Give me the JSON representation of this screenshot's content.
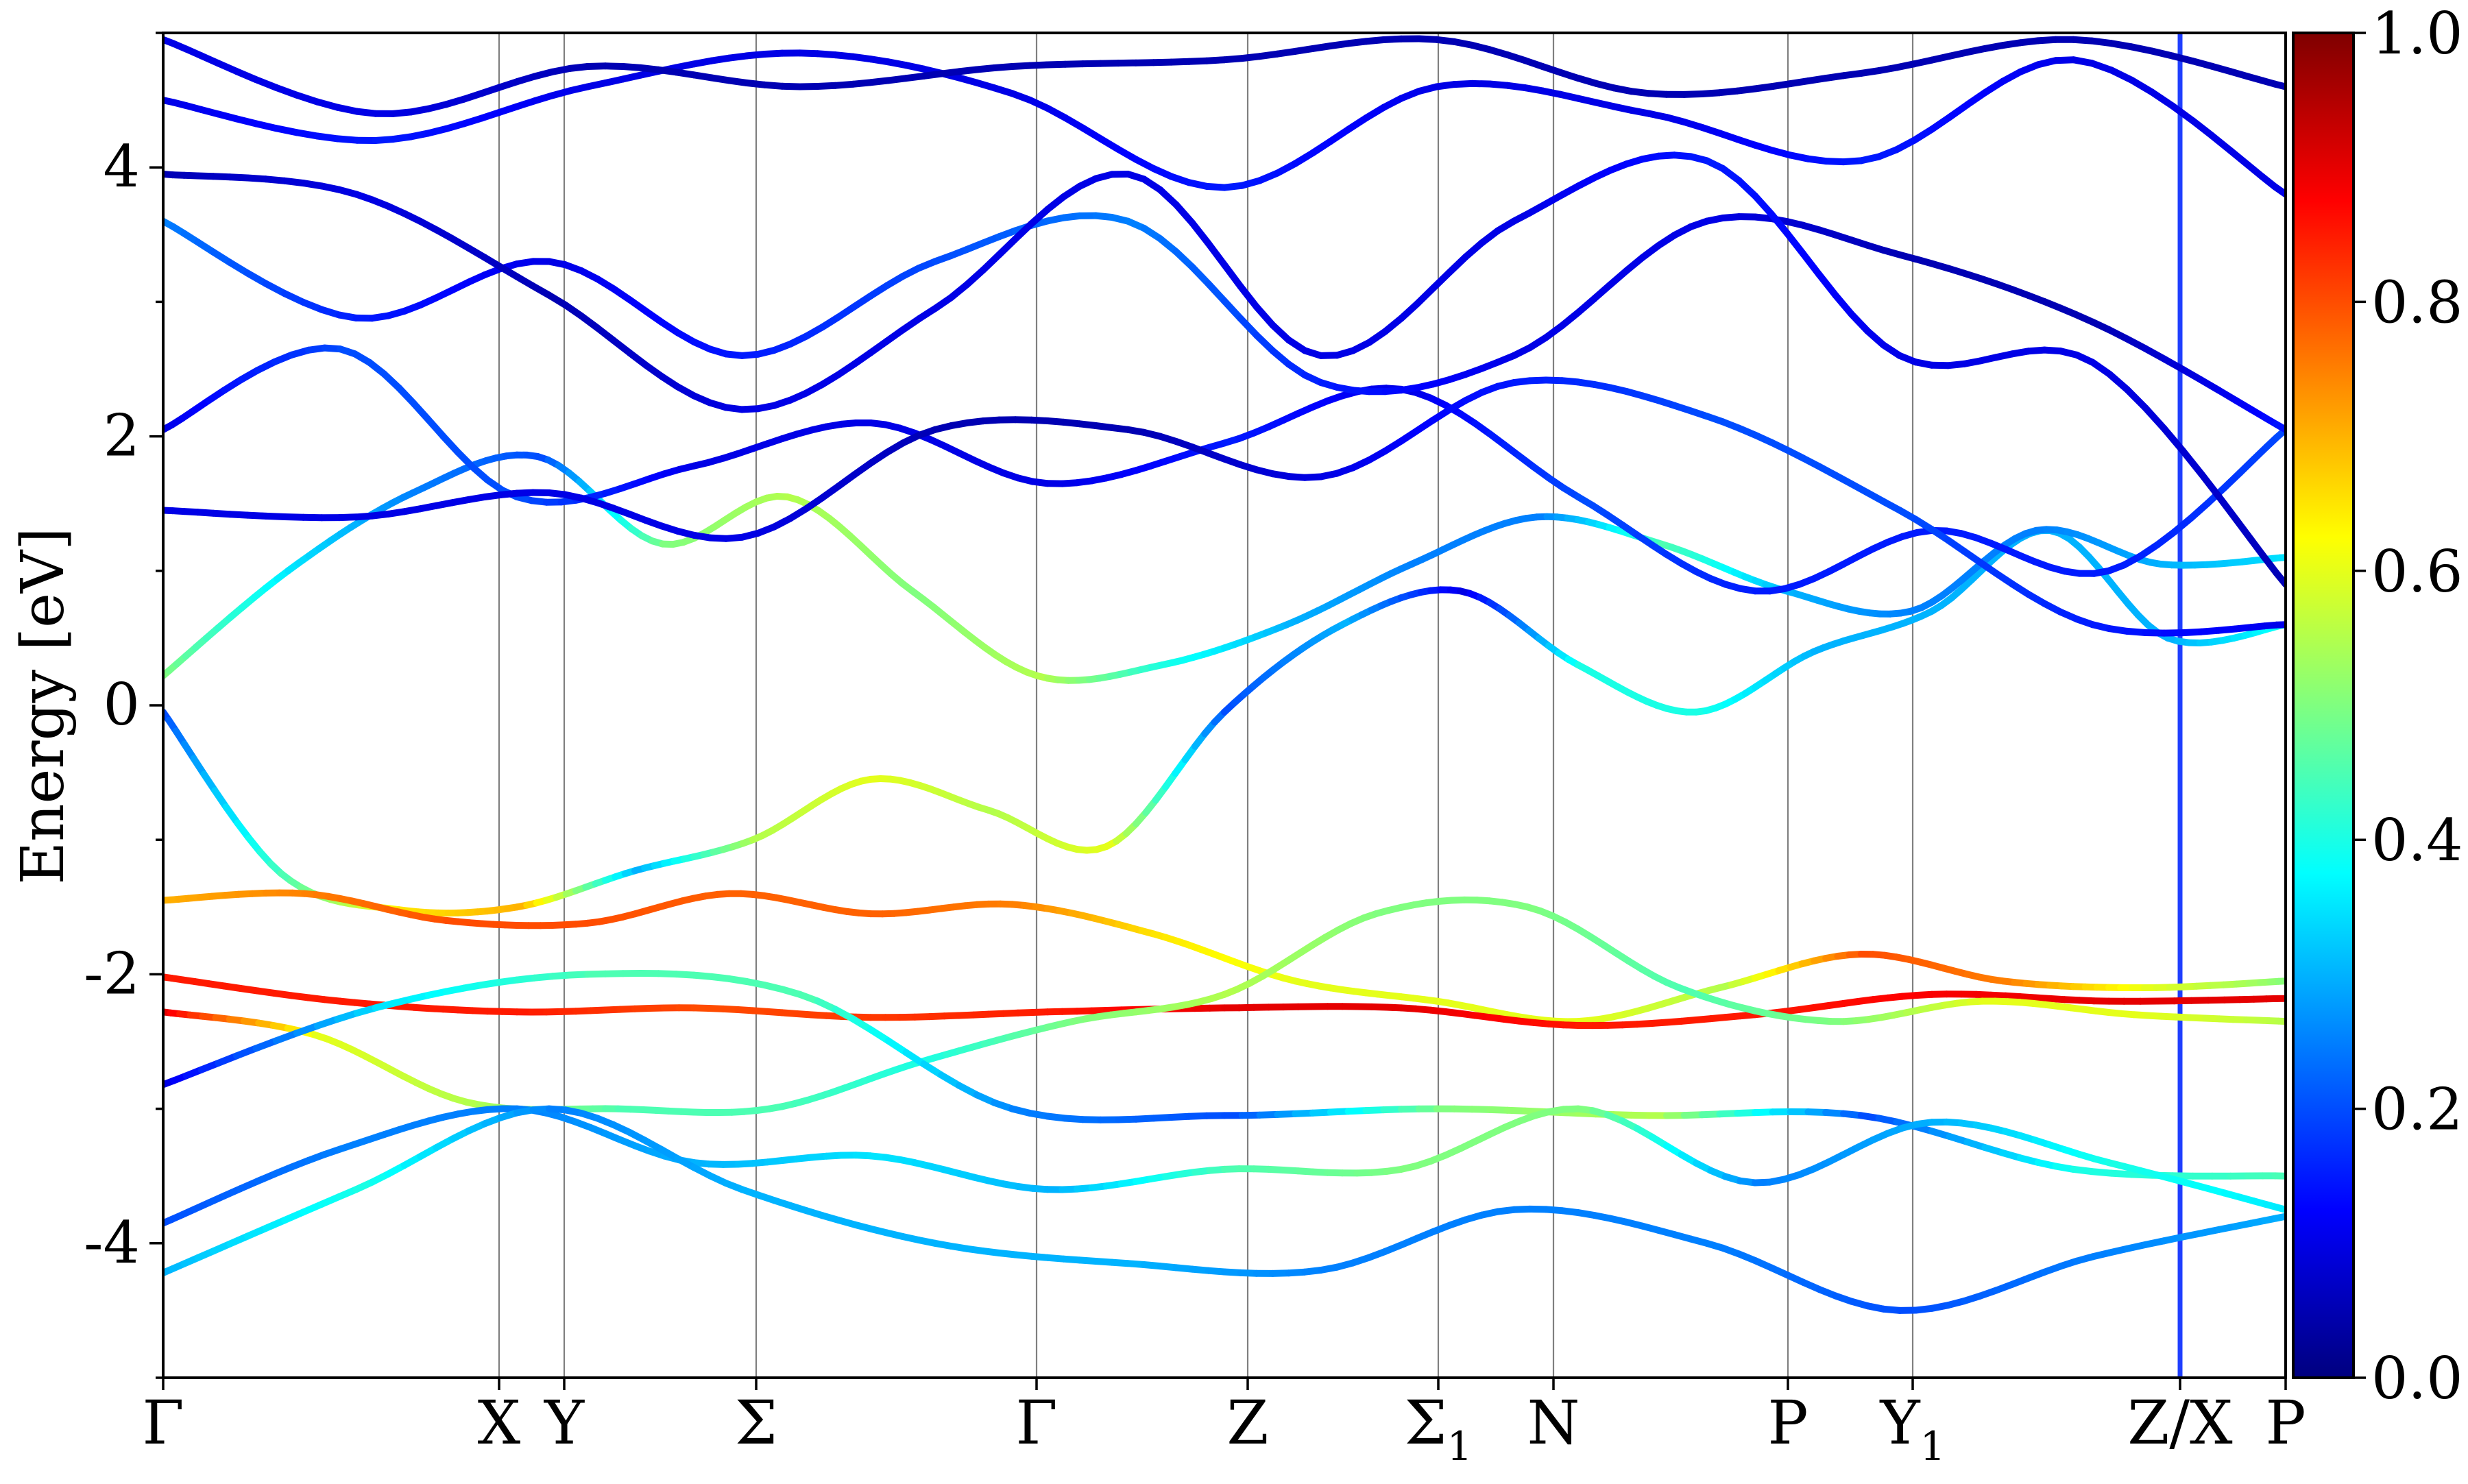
{
  "chart_data": {
    "type": "line",
    "title": "",
    "xlabel": "",
    "ylabel": "Energy [eV]",
    "ylim": [
      -5,
      5
    ],
    "y_ticks": [
      -4,
      -2,
      0,
      2,
      4
    ],
    "y_tick_labels": [
      "-4",
      "-2",
      "0",
      "2",
      "4"
    ],
    "k_labels": [
      {
        "text": "Γ",
        "sub": ""
      },
      {
        "text": "X",
        "sub": ""
      },
      {
        "text": "Y",
        "sub": ""
      },
      {
        "text": "Σ",
        "sub": ""
      },
      {
        "text": "Γ",
        "sub": ""
      },
      {
        "text": "Z",
        "sub": ""
      },
      {
        "text": "Σ",
        "sub": "1"
      },
      {
        "text": "N",
        "sub": ""
      },
      {
        "text": "P",
        "sub": ""
      },
      {
        "text": "Y",
        "sub": "1"
      },
      {
        "text": "Z/X",
        "sub": ""
      },
      {
        "text": "P",
        "sub": ""
      }
    ],
    "k_positions": [
      0,
      1.0,
      0.2,
      0.57,
      0.84,
      0.63,
      0.57,
      0.34,
      0.71,
      0.37,
      0.8,
      0.31
    ],
    "grid": "vertical lines at high-symmetry points",
    "colorbar": {
      "min": 0.0,
      "max": 1.0,
      "ticks": [
        "0.0",
        "0.2",
        "0.4",
        "0.6",
        "0.8",
        "1.0"
      ],
      "colormap": "jet"
    },
    "band_path": [
      {
        "energy": [
          -0.05,
          -1.25,
          -1.52,
          -1.5,
          -1.23,
          -1.0,
          -0.55,
          -0.78,
          -1.05,
          -0.05,
          0.6,
          0.85,
          0.3,
          -0.05,
          0.4,
          0.7,
          1.3,
          0.5,
          0.6
        ],
        "weight": [
          0.2,
          0.45,
          0.65,
          0.7,
          0.3,
          0.55,
          0.6,
          0.55,
          0.6,
          0.2,
          0.3,
          0.1,
          0.4,
          0.4,
          0.3,
          0.3,
          0.3,
          0.3,
          0.4
        ]
      },
      {
        "energy": [
          0.22,
          1.0,
          1.58,
          1.85,
          1.2,
          1.55,
          0.85,
          0.22,
          0.3,
          0.6,
          1.05,
          1.4,
          1.2,
          0.85,
          0.7,
          1.3,
          1.05,
          1.1
        ],
        "weight": [
          0.5,
          0.35,
          0.25,
          0.2,
          0.5,
          0.55,
          0.5,
          0.55,
          0.4,
          0.3,
          0.25,
          0.25,
          0.45,
          0.3,
          0.25,
          0.25,
          0.3,
          0.35
        ]
      },
      {
        "energy": [
          -1.45,
          -1.4,
          -1.6,
          -1.62,
          -1.4,
          -1.55,
          -1.48,
          -1.7,
          -2.05,
          -2.2,
          -2.35,
          -2.1,
          -1.85,
          -2.05,
          -2.1,
          -2.05
        ],
        "weight": [
          0.7,
          0.75,
          0.8,
          0.8,
          0.78,
          0.78,
          0.75,
          0.65,
          0.6,
          0.6,
          0.6,
          0.55,
          0.8,
          0.75,
          0.6,
          0.5
        ]
      },
      {
        "energy": [
          -2.02,
          -2.2,
          -2.28,
          -2.25,
          -2.32,
          -2.28,
          -2.25,
          -2.25,
          -2.38,
          -2.3,
          -2.15,
          -2.2,
          -2.18
        ],
        "weight": [
          0.85,
          0.85,
          0.85,
          0.8,
          0.82,
          0.85,
          0.9,
          0.9,
          0.85,
          0.85,
          0.88,
          0.9,
          0.9
        ]
      },
      {
        "energy": [
          -2.28,
          -2.45,
          -2.95,
          -3.0,
          -3.0,
          -2.65,
          -2.35,
          -2.15,
          -1.55,
          -1.5,
          -2.1,
          -2.35,
          -2.2,
          -2.3,
          -2.35
        ],
        "weight": [
          0.9,
          0.6,
          0.55,
          0.45,
          0.45,
          0.4,
          0.5,
          0.55,
          0.5,
          0.5,
          0.45,
          0.5,
          0.6,
          0.6,
          0.55
        ]
      },
      {
        "energy": [
          -2.82,
          -2.25,
          -2.0,
          -2.15,
          -3.0,
          -3.05,
          -3.0,
          -3.05,
          -3.05,
          -3.45,
          -3.5
        ],
        "weight": [
          0.1,
          0.35,
          0.45,
          0.45,
          0.25,
          0.2,
          0.5,
          0.55,
          0.2,
          0.4,
          0.45
        ]
      },
      {
        "energy": [
          -3.85,
          -3.3,
          -3.0,
          -3.4,
          -3.35,
          -3.6,
          -3.45,
          -3.45,
          -3.0,
          -3.55,
          -3.1,
          -3.4,
          -3.75
        ],
        "weight": [
          0.2,
          0.25,
          0.25,
          0.3,
          0.35,
          0.3,
          0.45,
          0.5,
          0.5,
          0.25,
          0.3,
          0.4,
          0.35
        ]
      },
      {
        "energy": [
          -4.22,
          -3.6,
          -3.0,
          -3.6,
          -4.0,
          -4.15,
          -4.2,
          -3.75,
          -4.0,
          -4.5,
          -4.1,
          -3.8
        ],
        "weight": [
          0.3,
          0.4,
          0.25,
          0.3,
          0.3,
          0.3,
          0.25,
          0.25,
          0.25,
          0.2,
          0.25,
          0.3
        ]
      },
      {
        "energy": [
          2.05,
          2.65,
          1.55,
          1.78,
          2.1,
          1.65,
          1.95,
          2.35,
          1.55,
          0.85,
          1.3,
          1.0,
          2.05
        ],
        "weight": [
          0.1,
          0.2,
          0.2,
          0.1,
          0.1,
          0.1,
          0.15,
          0.1,
          0.2,
          0.15,
          0.15,
          0.15,
          0.2
        ]
      },
      {
        "energy": [
          1.45,
          1.4,
          1.58,
          1.25,
          2.05,
          2.05,
          1.7,
          2.4,
          2.15,
          1.45,
          0.6,
          0.6
        ],
        "weight": [
          0.1,
          0.1,
          0.1,
          0.1,
          0.05,
          0.05,
          0.1,
          0.15,
          0.2,
          0.2,
          0.15,
          0.1
        ]
      },
      {
        "energy": [
          3.6,
          2.88,
          3.3,
          2.6,
          3.3,
          3.6,
          2.4,
          2.6,
          3.6,
          3.35,
          2.85,
          2.05
        ],
        "weight": [
          0.25,
          0.15,
          0.1,
          0.15,
          0.2,
          0.25,
          0.15,
          0.1,
          0.1,
          0.05,
          0.05,
          0.15
        ]
      },
      {
        "energy": [
          3.95,
          3.8,
          3.05,
          2.2,
          2.95,
          3.95,
          2.6,
          3.6,
          4.05,
          2.6,
          2.55,
          0.9
        ],
        "weight": [
          0.05,
          0.1,
          0.05,
          0.1,
          0.1,
          0.1,
          0.1,
          0.1,
          0.15,
          0.1,
          0.1,
          0.05
        ]
      },
      {
        "energy": [
          4.5,
          4.2,
          4.6,
          4.85,
          4.55,
          3.85,
          4.6,
          4.4,
          4.05,
          4.8,
          3.8
        ],
        "weight": [
          0.1,
          0.15,
          0.1,
          0.1,
          0.1,
          0.15,
          0.1,
          0.1,
          0.15,
          0.1,
          0.1
        ]
      },
      {
        "energy": [
          4.95,
          4.4,
          4.75,
          4.6,
          4.75,
          4.8,
          4.95,
          4.55,
          4.7,
          4.95,
          4.6
        ],
        "weight": [
          0.1,
          0.1,
          0.05,
          0.05,
          0.05,
          0.05,
          0.05,
          0.05,
          0.05,
          0.05,
          0.05
        ]
      }
    ]
  }
}
